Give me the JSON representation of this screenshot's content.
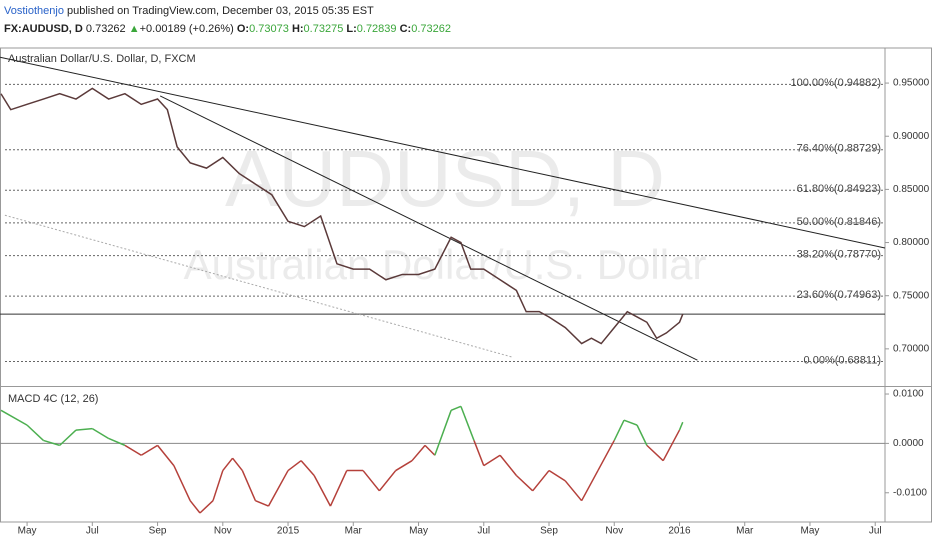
{
  "header": {
    "author": "Vostiothenjo",
    "published": " published on TradingView.com, December 03, 2015 05:35 EST",
    "symbol": "FX:AUDUSD, D",
    "price": "0.73262",
    "arrow": "▲",
    "change": "+0.00189 (+0.26%)",
    "o_label": "O:",
    "open": "0.73073",
    "h_label": "H:",
    "high": "0.73275",
    "l_label": "L:",
    "low": "0.72839",
    "c_label": "C:",
    "close": "0.73262"
  },
  "chart_data": [
    {
      "type": "line",
      "title": "Australian Dollar/U.S. Dollar, D, FXCM",
      "watermark": [
        "AUDUSD, D",
        "Australian Dollar/U.S. Dollar"
      ],
      "xlim": [
        3.17,
        30.3
      ],
      "ylim": [
        0.666,
        0.983
      ],
      "yticks": [
        {
          "value": 0.7,
          "label": "0.70000"
        },
        {
          "value": 0.75,
          "label": "0.75000"
        },
        {
          "value": 0.8,
          "label": "0.80000"
        },
        {
          "value": 0.85,
          "label": "0.85000"
        },
        {
          "value": 0.9,
          "label": "0.90000"
        },
        {
          "value": 0.95,
          "label": "0.95000"
        }
      ],
      "last": 0.73262,
      "fib_levels": [
        {
          "value": 0.94882,
          "label": "100.00%(0.94882)"
        },
        {
          "value": 0.88729,
          "label": "76.40%(0.88729)"
        },
        {
          "value": 0.84923,
          "label": "61.80%(0.84923)"
        },
        {
          "value": 0.81846,
          "label": "50.00%(0.81846)"
        },
        {
          "value": 0.7877,
          "label": "38.20%(0.78770)"
        },
        {
          "value": 0.74963,
          "label": "23.60%(0.74963)"
        },
        {
          "value": 0.68811,
          "label": "0.00%(0.68811)"
        }
      ],
      "trendlines": [
        {
          "x": [
            3.17,
            30.3
          ],
          "y": [
            0.9743,
            0.7949
          ],
          "style": "solid"
        },
        {
          "x": [
            8.08,
            24.55
          ],
          "y": [
            0.9379,
            0.6893
          ],
          "style": "solid"
        },
        {
          "x": [
            3.32,
            18.9
          ],
          "y": [
            0.8257,
            0.692
          ],
          "style": "dotted"
        }
      ],
      "series": [
        {
          "name": "AUDUSD",
          "color": "#5b3a3a",
          "x": [
            3.2,
            3.5,
            4,
            4.5,
            5,
            5.5,
            6,
            6.5,
            7,
            7.5,
            8,
            8.3,
            8.6,
            9,
            9.5,
            10,
            10.5,
            11,
            11.5,
            12,
            12.5,
            13,
            13.5,
            14,
            14.5,
            15,
            15.5,
            16,
            16.5,
            17,
            17.3,
            17.6,
            18,
            18.5,
            19,
            19.3,
            19.7,
            20,
            20.5,
            21,
            21.3,
            21.6,
            22,
            22.4,
            22.7,
            23,
            23.3,
            23.6,
            24,
            24.1
          ],
          "values": [
            0.94,
            0.925,
            0.93,
            0.935,
            0.94,
            0.935,
            0.945,
            0.935,
            0.94,
            0.93,
            0.935,
            0.925,
            0.89,
            0.875,
            0.87,
            0.88,
            0.865,
            0.855,
            0.845,
            0.82,
            0.815,
            0.825,
            0.78,
            0.775,
            0.775,
            0.765,
            0.77,
            0.77,
            0.775,
            0.805,
            0.8,
            0.775,
            0.775,
            0.765,
            0.755,
            0.735,
            0.735,
            0.73,
            0.72,
            0.705,
            0.71,
            0.705,
            0.72,
            0.735,
            0.73,
            0.725,
            0.71,
            0.715,
            0.725,
            0.7326
          ]
        }
      ]
    },
    {
      "type": "line",
      "title": "MACD 4C (12, 26)",
      "xlim": [
        3.17,
        30.3
      ],
      "ylim": [
        -0.01592,
        0.01122
      ],
      "yticks": [
        {
          "value": -0.01,
          "label": "-0.0100"
        },
        {
          "value": 0,
          "label": "0.0000"
        },
        {
          "value": 0.01,
          "label": "0.0100"
        }
      ],
      "xticks": [
        {
          "value": 4,
          "label": "May"
        },
        {
          "value": 6,
          "label": "Jul"
        },
        {
          "value": 8,
          "label": "Sep"
        },
        {
          "value": 10,
          "label": "Nov"
        },
        {
          "value": 12,
          "label": "2015"
        },
        {
          "value": 14,
          "label": "Mar"
        },
        {
          "value": 16,
          "label": "May"
        },
        {
          "value": 18,
          "label": "Jul"
        },
        {
          "value": 20,
          "label": "Sep"
        },
        {
          "value": 22,
          "label": "Nov"
        },
        {
          "value": 24,
          "label": "2016"
        },
        {
          "value": 26,
          "label": "Mar"
        },
        {
          "value": 28,
          "label": "May"
        },
        {
          "value": 30,
          "label": "Jul"
        }
      ],
      "colors": {
        "positive": "#4caf50",
        "negative": "#b5403a"
      },
      "series": [
        {
          "name": "MACD",
          "x": [
            3.2,
            4,
            4.5,
            5,
            5.5,
            6,
            6.5,
            7,
            7.5,
            8,
            8.5,
            9,
            9.3,
            9.7,
            10,
            10.3,
            10.6,
            11,
            11.4,
            12,
            12.4,
            12.8,
            13.3,
            13.8,
            14.3,
            14.8,
            15.3,
            15.8,
            16.2,
            16.5,
            17,
            17.3,
            17.7,
            18,
            18.5,
            19,
            19.5,
            20,
            20.5,
            21,
            21.5,
            22,
            22.3,
            22.7,
            23,
            23.5,
            24,
            24.1
          ],
          "values": [
            0.0067,
            0.0037,
            0.0006,
            -0.0004,
            0.0027,
            0.003,
            0.001,
            -0.0004,
            -0.0024,
            -0.0004,
            -0.0045,
            -0.0116,
            -0.0141,
            -0.0116,
            -0.0055,
            -0.003,
            -0.0055,
            -0.0116,
            -0.0127,
            -0.0055,
            -0.0035,
            -0.0065,
            -0.0127,
            -0.0055,
            -0.0055,
            -0.0096,
            -0.0055,
            -0.0035,
            -0.0004,
            -0.0024,
            0.0067,
            0.0075,
            0.0006,
            -0.0045,
            -0.0024,
            -0.0065,
            -0.0096,
            -0.0055,
            -0.0076,
            -0.0116,
            -0.0055,
            0.0006,
            0.0047,
            0.0037,
            -0.0004,
            -0.0035,
            0.0027,
            0.0043
          ]
        }
      ]
    }
  ]
}
